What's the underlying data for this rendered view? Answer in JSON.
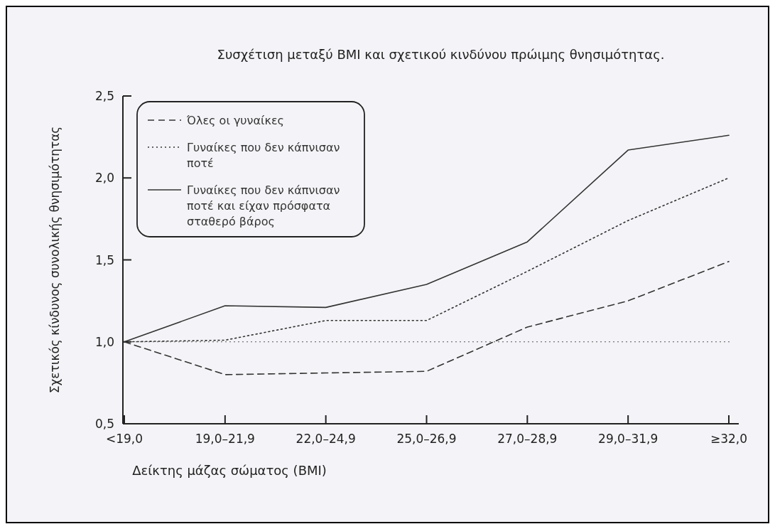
{
  "chart_data": {
    "type": "line",
    "title": "Συσχέτιση μεταξύ BMI και σχετικού κινδύνου πρώιμης θνησιμότητας.",
    "xlabel": "Δείκτης μάζας σώματος (BMI)",
    "ylabel": "Σχετικός κίνδυνος συνολικής θνησιμότητας",
    "categories": [
      "<19,0",
      "19,0–21,9",
      "22,0–24,9",
      "25,0–26,9",
      "27,0–28,9",
      "29,0–31,9",
      "≥32,0"
    ],
    "series": [
      {
        "name": "Όλες οι γυναίκες",
        "color": "#333333",
        "line_style": "dashed",
        "values": [
          1.0,
          0.8,
          0.81,
          0.82,
          1.09,
          1.25,
          1.49
        ]
      },
      {
        "name": "Γυναίκες που δεν κάπνισαν ποτέ",
        "color": "#333333",
        "line_style": "dotted",
        "values": [
          1.0,
          1.01,
          1.13,
          1.13,
          1.43,
          1.74,
          2.0
        ]
      },
      {
        "name": "Γυναίκες που δεν κάπνισαν ποτέ και είχαν πρόσφατα σταθερό βάρος",
        "color": "#333333",
        "line_style": "solid",
        "values": [
          1.0,
          1.22,
          1.21,
          1.35,
          1.61,
          2.17,
          2.26
        ]
      }
    ],
    "ylim": [
      0.5,
      2.5
    ],
    "yticks": [
      {
        "value": 0.5,
        "label": "0,5"
      },
      {
        "value": 1.0,
        "label": "1,0"
      },
      {
        "value": 1.5,
        "label": "1,5"
      },
      {
        "value": 2.0,
        "label": "2,0"
      },
      {
        "value": 2.5,
        "label": "2,5"
      }
    ],
    "ref_lines": [
      {
        "axis": "y",
        "value": 1.0,
        "color": "#555555",
        "line_style": "dotted"
      }
    ],
    "legend": "top left",
    "grid": false,
    "marker": "none"
  }
}
